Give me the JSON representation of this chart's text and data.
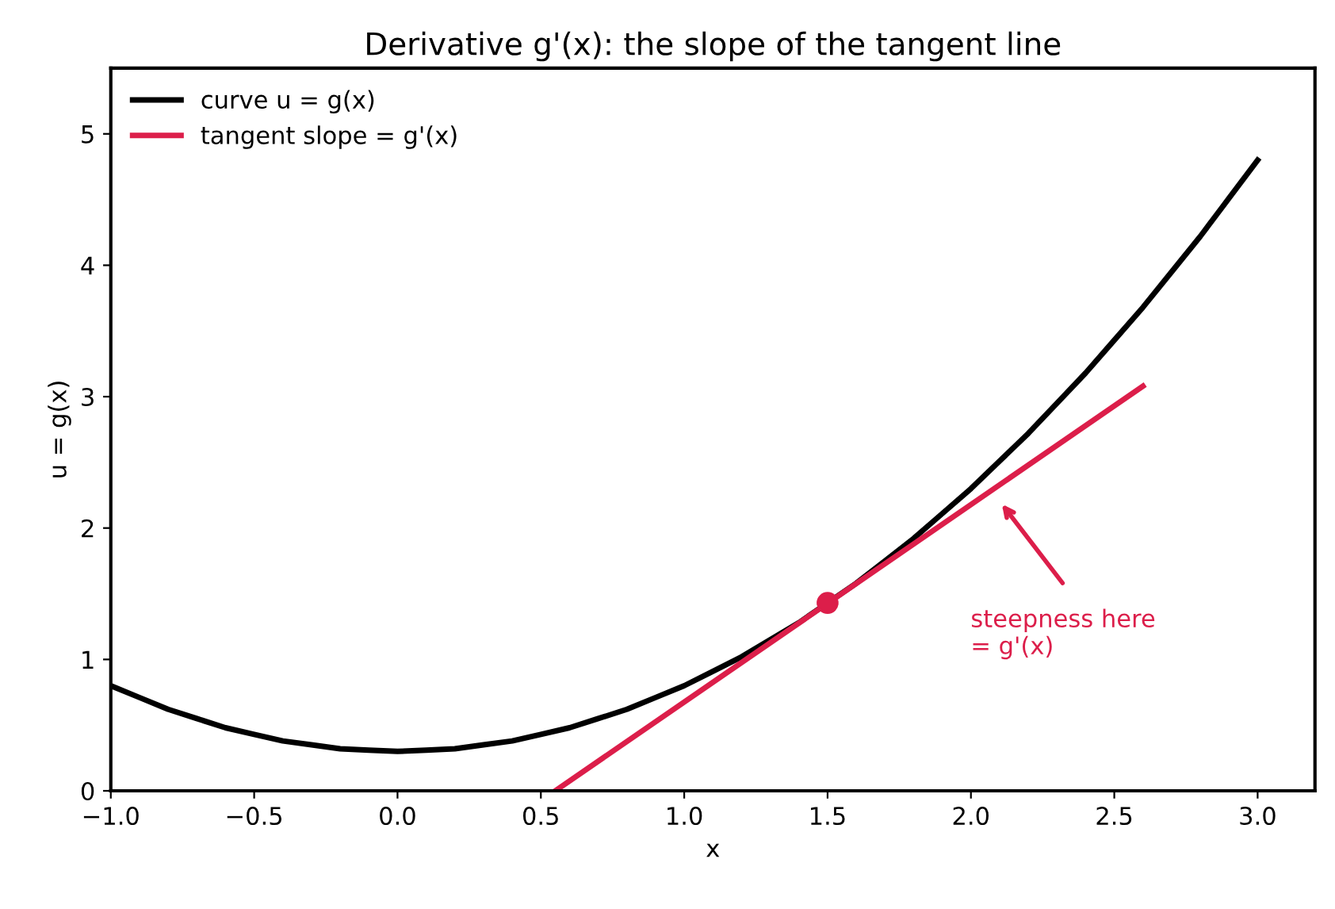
{
  "chart_data": {
    "type": "line",
    "title": "Derivative g'(x): the slope of the tangent line",
    "xlabel": "x",
    "ylabel": "u = g(x)",
    "series": [
      {
        "name": "curve u = g(x)",
        "color": "#000000",
        "x": [
          -1.0,
          -0.9,
          -0.8,
          -0.7,
          -0.6,
          -0.5,
          -0.4,
          -0.3,
          -0.2,
          -0.1,
          0.0,
          0.1,
          0.2,
          0.3,
          0.4,
          0.5,
          0.6,
          0.7,
          0.8,
          0.9,
          1.0,
          1.1,
          1.2,
          1.3,
          1.4,
          1.5,
          1.6,
          1.7,
          1.8,
          1.9,
          2.0,
          2.1,
          2.2,
          2.3,
          2.4,
          2.5,
          2.6,
          2.7,
          2.8,
          2.9,
          3.0
        ],
        "values": [
          0.8,
          0.71,
          0.62,
          0.55,
          0.48,
          0.43,
          0.38,
          0.35,
          0.32,
          0.31,
          0.3,
          0.31,
          0.32,
          0.35,
          0.38,
          0.43,
          0.48,
          0.55,
          0.62,
          0.71,
          0.8,
          0.91,
          1.02,
          1.15,
          1.28,
          1.43,
          1.58,
          1.75,
          1.92,
          2.11,
          2.3,
          2.51,
          2.72,
          2.95,
          3.18,
          3.43,
          3.68,
          3.95,
          4.22,
          4.51,
          4.8
        ]
      },
      {
        "name": "tangent slope = g'(x)",
        "color": "#dc1e4a",
        "x": [
          0.55,
          2.6
        ],
        "values": [
          0.0,
          3.08
        ]
      },
      {
        "type": "scatter",
        "color": "#dc1e4a",
        "x": [
          1.5
        ],
        "values": [
          1.43
        ],
        "marker": "circle"
      }
    ],
    "annotations": [
      "steepness here\n= g'(x)"
    ],
    "xlim": [
      -1,
      3.2
    ],
    "ylim": [
      0,
      5.5
    ],
    "xticks": [
      {
        "value": -1.0,
        "label": "−1.0"
      },
      {
        "value": -0.5,
        "label": "−0.5"
      },
      {
        "value": 0.0,
        "label": "0.0"
      },
      {
        "value": 0.5,
        "label": "0.5"
      },
      {
        "value": 1.0,
        "label": "1.0"
      },
      {
        "value": 1.5,
        "label": "1.5"
      },
      {
        "value": 2.0,
        "label": "2.0"
      },
      {
        "value": 2.5,
        "label": "2.5"
      },
      {
        "value": 3.0,
        "label": "3.0"
      }
    ],
    "yticks": [
      0,
      1,
      2,
      3,
      4,
      5
    ],
    "grid": false,
    "legend": "top left"
  }
}
